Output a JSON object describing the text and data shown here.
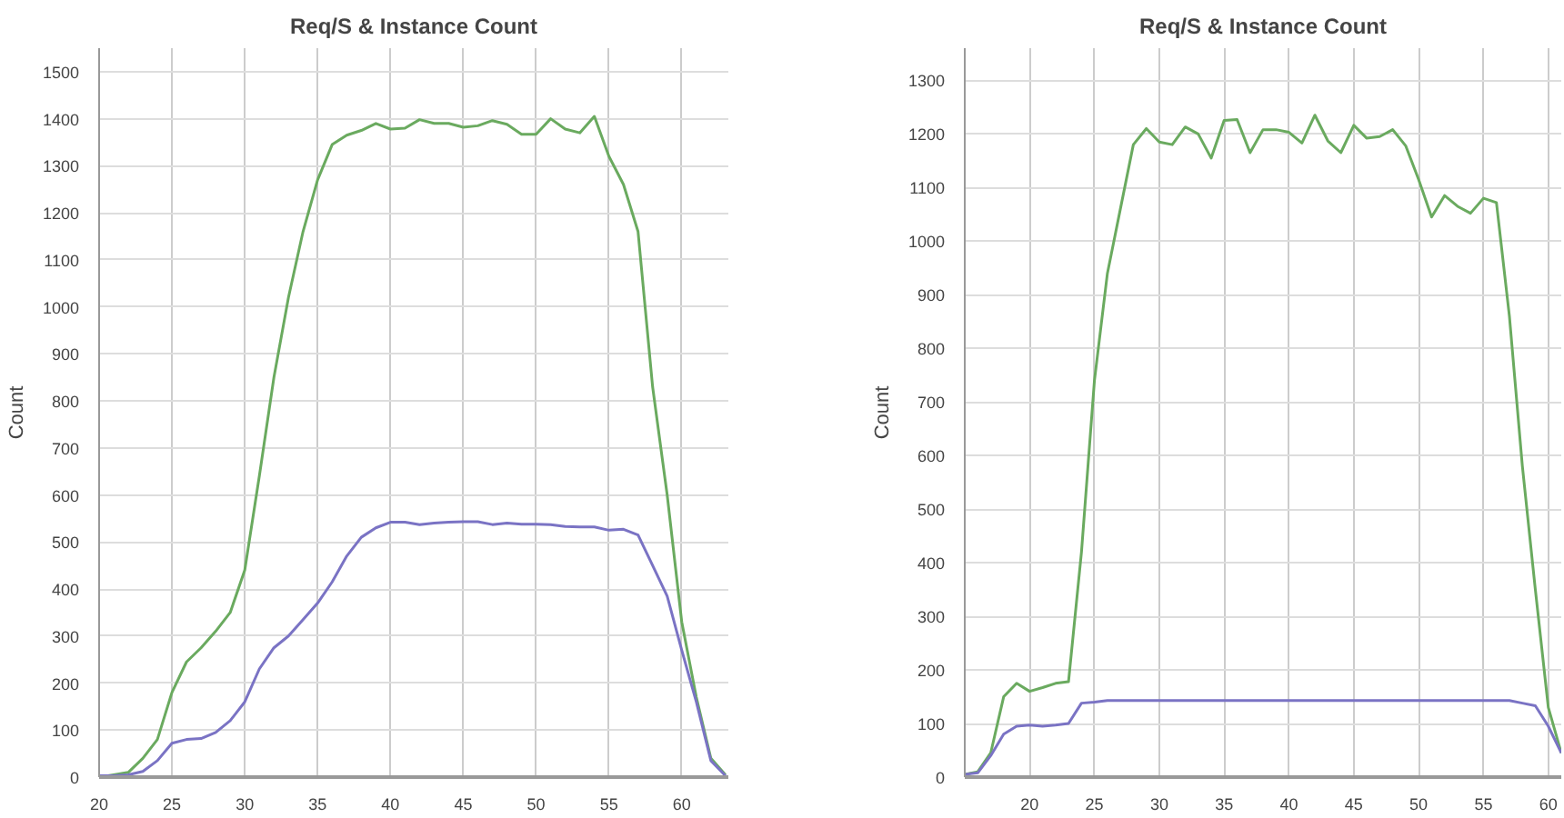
{
  "chart_data": [
    {
      "type": "line",
      "title": "Req/S & Instance Count",
      "ylabel": "Count",
      "x": [
        20,
        21,
        22,
        23,
        24,
        25,
        26,
        27,
        28,
        29,
        30,
        31,
        32,
        33,
        34,
        35,
        36,
        37,
        38,
        39,
        40,
        41,
        42,
        43,
        44,
        45,
        46,
        47,
        48,
        49,
        50,
        51,
        52,
        53,
        54,
        55,
        56,
        57,
        58,
        59,
        60,
        61,
        62,
        63
      ],
      "series": [
        {
          "color": "#6aaa5f",
          "values": [
            0,
            5,
            10,
            40,
            80,
            180,
            245,
            275,
            310,
            350,
            440,
            640,
            850,
            1020,
            1160,
            1270,
            1345,
            1365,
            1375,
            1390,
            1378,
            1380,
            1398,
            1390,
            1390,
            1382,
            1385,
            1396,
            1388,
            1367,
            1367,
            1400,
            1378,
            1370,
            1405,
            1320,
            1260,
            1160,
            830,
            600,
            330,
            170,
            40,
            5
          ]
        },
        {
          "color": "#7a73c4",
          "values": [
            3,
            3,
            5,
            12,
            35,
            72,
            80,
            82,
            95,
            120,
            160,
            230,
            275,
            300,
            335,
            370,
            415,
            470,
            510,
            530,
            542,
            542,
            537,
            540,
            542,
            543,
            543,
            537,
            540,
            538,
            538,
            537,
            533,
            532,
            532,
            525,
            527,
            515,
            450,
            385,
            270,
            160,
            35,
            3
          ]
        }
      ],
      "xlim": [
        20,
        63.2
      ],
      "ylim": [
        0,
        1550
      ],
      "xticks": [
        20,
        25,
        30,
        35,
        40,
        45,
        50,
        55,
        60
      ],
      "yticks": [
        0,
        100,
        200,
        300,
        400,
        500,
        600,
        700,
        800,
        900,
        1000,
        1100,
        1200,
        1300,
        1400,
        1500
      ],
      "grid": true,
      "marker": "none",
      "line_style": "solid"
    },
    {
      "type": "line",
      "title": "Req/S & Instance Count",
      "ylabel": "Count",
      "x": [
        15,
        16,
        17,
        18,
        19,
        20,
        21,
        22,
        23,
        24,
        25,
        26,
        27,
        28,
        29,
        30,
        31,
        32,
        33,
        34,
        35,
        36,
        37,
        38,
        39,
        40,
        41,
        42,
        43,
        44,
        45,
        46,
        47,
        48,
        49,
        50,
        51,
        52,
        53,
        54,
        55,
        56,
        57,
        58,
        59,
        60,
        61
      ],
      "series": [
        {
          "color": "#6aaa5f",
          "values": [
            5,
            10,
            45,
            150,
            175,
            160,
            167,
            175,
            178,
            420,
            740,
            940,
            1060,
            1180,
            1210,
            1185,
            1180,
            1213,
            1200,
            1155,
            1225,
            1227,
            1165,
            1208,
            1208,
            1203,
            1183,
            1235,
            1187,
            1165,
            1216,
            1192,
            1195,
            1208,
            1178,
            1115,
            1045,
            1085,
            1065,
            1052,
            1080,
            1072,
            860,
            580,
            350,
            130,
            45
          ]
        },
        {
          "color": "#7a73c4",
          "values": [
            5,
            8,
            40,
            80,
            95,
            97,
            95,
            97,
            100,
            138,
            140,
            143,
            143,
            143,
            143,
            143,
            143,
            143,
            143,
            143,
            143,
            143,
            143,
            143,
            143,
            143,
            143,
            143,
            143,
            143,
            143,
            143,
            143,
            143,
            143,
            143,
            143,
            143,
            143,
            143,
            143,
            143,
            143,
            138,
            133,
            95,
            45
          ]
        }
      ],
      "xlim": [
        15,
        61
      ],
      "ylim": [
        0,
        1360
      ],
      "xticks": [
        20,
        25,
        30,
        35,
        40,
        45,
        50,
        55,
        60
      ],
      "yticks": [
        0,
        100,
        200,
        300,
        400,
        500,
        600,
        700,
        800,
        900,
        1000,
        1100,
        1200,
        1300
      ],
      "grid": true,
      "marker": "none",
      "line_style": "solid"
    }
  ]
}
